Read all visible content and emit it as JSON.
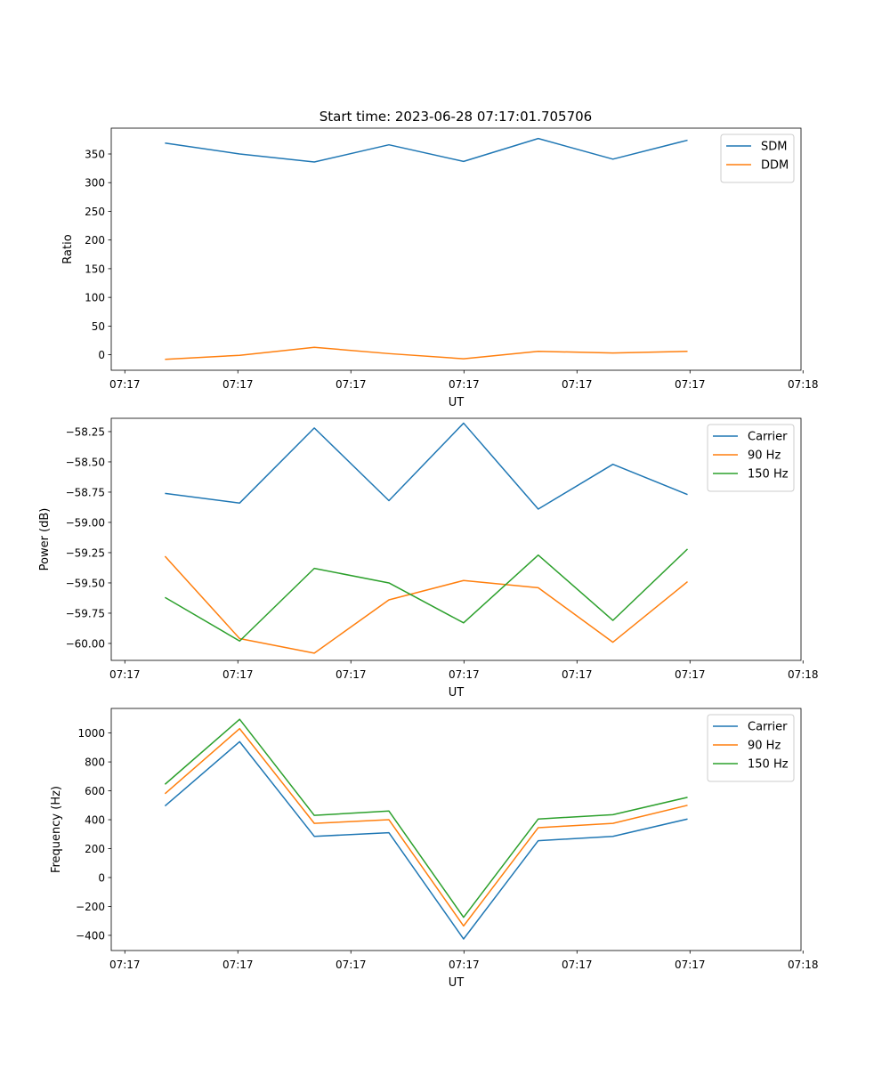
{
  "figure_title": "Start time: 2023-06-28 07:17:01.705706",
  "chart_data": [
    {
      "type": "line",
      "title": "Start time: 2023-06-28 07:17:01.705706",
      "xlabel": "UT",
      "ylabel": "Ratio",
      "x": [
        1,
        2,
        3,
        4,
        5,
        6,
        7,
        8
      ],
      "xlim": [
        0.28,
        9.52
      ],
      "xticks": [
        0.462,
        1.976,
        3.49,
        5.005,
        6.519,
        8.033,
        9.547
      ],
      "xtick_labels": [
        "07:17",
        "07:17",
        "07:17",
        "07:17",
        "07:17",
        "07:17",
        "07:18"
      ],
      "ylim": [
        -27,
        395
      ],
      "yticks": [
        0,
        50,
        100,
        150,
        200,
        250,
        300,
        350
      ],
      "ytick_labels": [
        "0",
        "50",
        "100",
        "150",
        "200",
        "250",
        "300",
        "350"
      ],
      "legend_position": "top-right",
      "grid": false,
      "series": [
        {
          "name": "SDM",
          "color": "#1f77b4",
          "values": [
            369,
            350,
            336,
            366,
            337,
            377,
            341,
            374
          ]
        },
        {
          "name": "DDM",
          "color": "#ff7f0e",
          "values": [
            -8,
            -1,
            13,
            2,
            -7,
            6,
            3,
            6
          ]
        }
      ]
    },
    {
      "type": "line",
      "title": "",
      "xlabel": "UT",
      "ylabel": "Power (dB)",
      "x": [
        1,
        2,
        3,
        4,
        5,
        6,
        7,
        8
      ],
      "xlim": [
        0.28,
        9.52
      ],
      "xticks": [
        0.462,
        1.976,
        3.49,
        5.005,
        6.519,
        8.033,
        9.547
      ],
      "xtick_labels": [
        "07:17",
        "07:17",
        "07:17",
        "07:17",
        "07:17",
        "07:17",
        "07:18"
      ],
      "ylim": [
        -60.14,
        -58.14
      ],
      "yticks": [
        -60.0,
        -59.75,
        -59.5,
        -59.25,
        -59.0,
        -58.75,
        -58.5,
        -58.25
      ],
      "ytick_labels": [
        "−60.00",
        "−59.75",
        "−59.50",
        "−59.25",
        "−59.00",
        "−58.75",
        "−58.50",
        "−58.25"
      ],
      "legend_position": "top-right",
      "grid": false,
      "series": [
        {
          "name": "Carrier",
          "color": "#1f77b4",
          "values": [
            -58.76,
            -58.84,
            -58.22,
            -58.82,
            -58.18,
            -58.89,
            -58.52,
            -58.77
          ]
        },
        {
          "name": "90 Hz",
          "color": "#ff7f0e",
          "values": [
            -59.28,
            -59.96,
            -60.08,
            -59.64,
            -59.48,
            -59.54,
            -59.99,
            -59.49
          ]
        },
        {
          "name": "150 Hz",
          "color": "#2ca02c",
          "values": [
            -59.62,
            -59.98,
            -59.38,
            -59.5,
            -59.83,
            -59.27,
            -59.81,
            -59.22
          ]
        }
      ]
    },
    {
      "type": "line",
      "title": "",
      "xlabel": "UT",
      "ylabel": "Frequency (Hz)",
      "x": [
        1,
        2,
        3,
        4,
        5,
        6,
        7,
        8
      ],
      "xlim": [
        0.28,
        9.52
      ],
      "xticks": [
        0.462,
        1.976,
        3.49,
        5.005,
        6.519,
        8.033,
        9.547
      ],
      "xtick_labels": [
        "07:17",
        "07:17",
        "07:17",
        "07:17",
        "07:17",
        "07:17",
        "07:18"
      ],
      "ylim": [
        -505,
        1170
      ],
      "yticks": [
        -400,
        -200,
        0,
        200,
        400,
        600,
        800,
        1000
      ],
      "ytick_labels": [
        "−400",
        "−200",
        "0",
        "200",
        "400",
        "600",
        "800",
        "1000"
      ],
      "legend_position": "top-right",
      "grid": false,
      "series": [
        {
          "name": "Carrier",
          "color": "#1f77b4",
          "values": [
            495,
            940,
            285,
            310,
            -425,
            255,
            285,
            405
          ]
        },
        {
          "name": "90 Hz",
          "color": "#ff7f0e",
          "values": [
            580,
            1030,
            375,
            400,
            -335,
            345,
            375,
            500
          ]
        },
        {
          "name": "150 Hz",
          "color": "#2ca02c",
          "values": [
            645,
            1095,
            430,
            460,
            -275,
            405,
            435,
            555
          ]
        }
      ]
    }
  ]
}
